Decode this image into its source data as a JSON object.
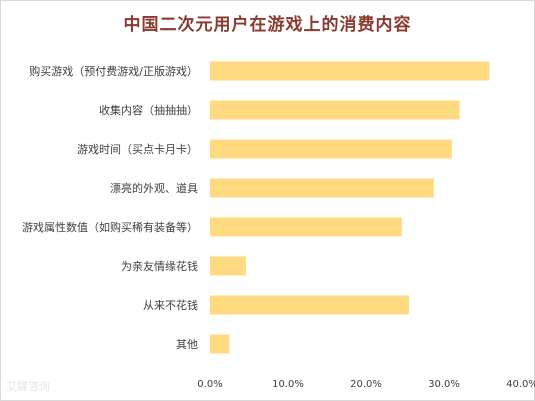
{
  "chart_data": {
    "type": "bar",
    "orientation": "horizontal",
    "title": "中国二次元用户在游戏上的消费内容",
    "categories": [
      "购买游戏（预付费游戏/正版游戏）",
      "收集内容（抽抽抽）",
      "游戏时间（买点卡月卡）",
      "漂亮的外观、道具",
      "游戏属性数值（如购买稀有装备等）",
      "为亲友情缘花钱",
      "从来不花钱",
      "其他"
    ],
    "values": [
      35.8,
      32.0,
      31.0,
      28.7,
      24.6,
      4.6,
      25.5,
      2.5
    ],
    "xlim": [
      0,
      40
    ],
    "xticks": [
      "0.0%",
      "10.0%",
      "20.0%",
      "30.0%",
      "40.0%"
    ],
    "bar_color": "#ffda80",
    "grid": false,
    "legend": "none"
  },
  "watermark": "艾媒咨询"
}
